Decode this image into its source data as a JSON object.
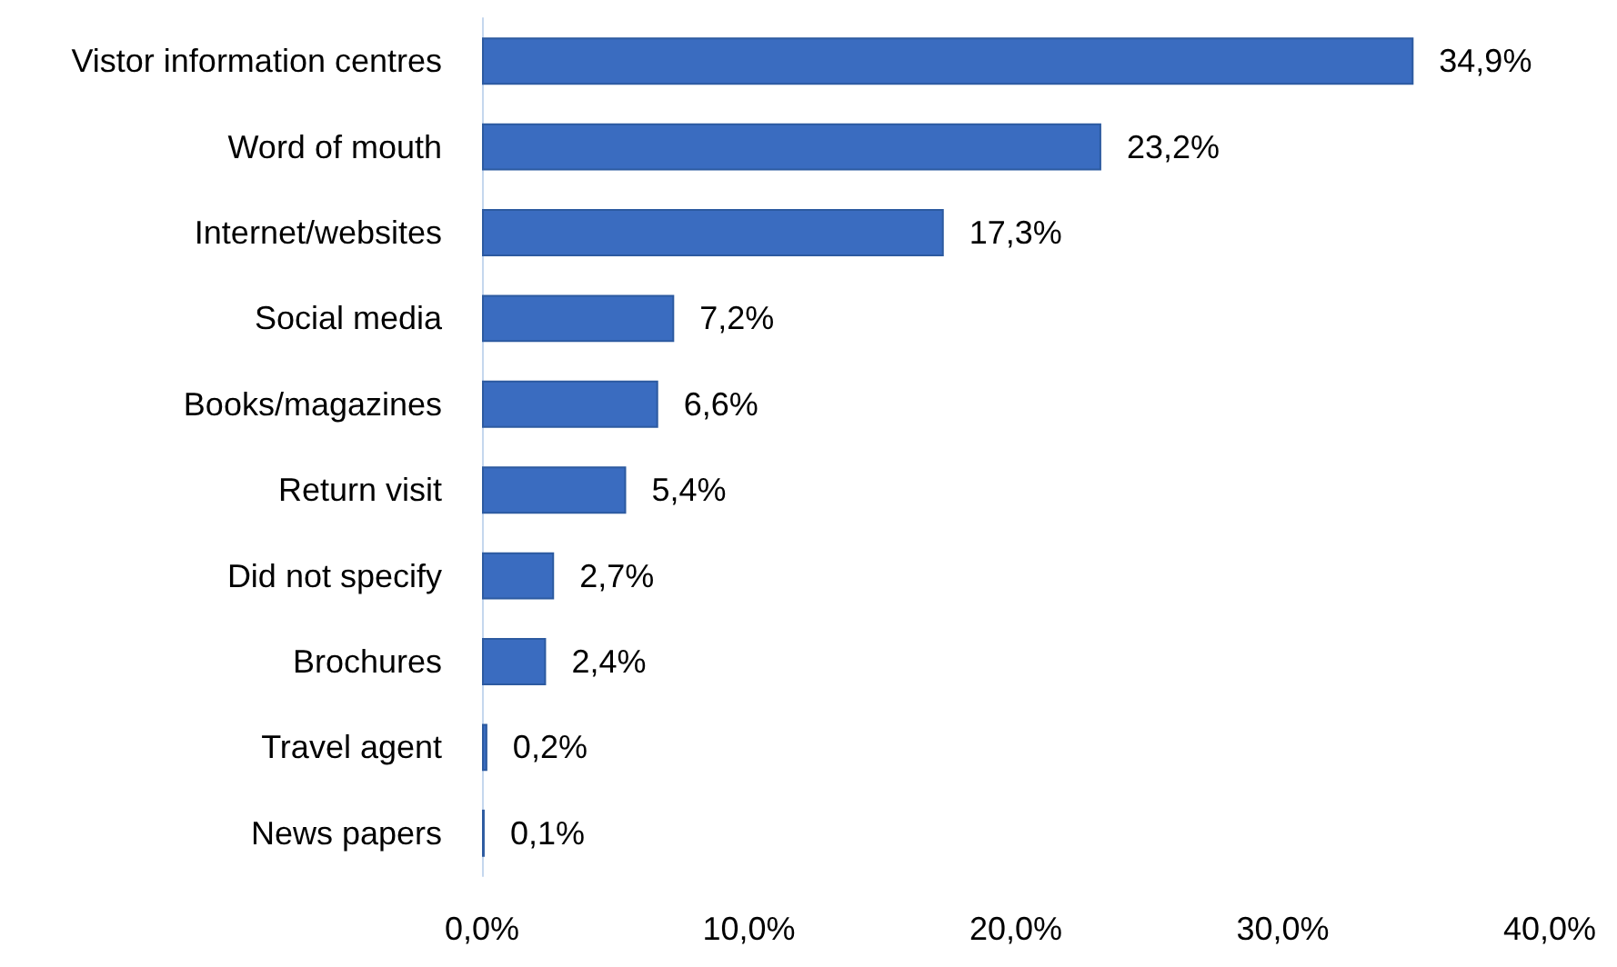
{
  "chart_data": {
    "type": "bar",
    "orientation": "horizontal",
    "categories": [
      "Vistor information centres",
      "Word of mouth",
      "Internet/websites",
      "Social media",
      "Books/magazines",
      "Return visit",
      "Did not specify",
      "Brochures",
      "Travel agent",
      "News papers"
    ],
    "values": [
      34.9,
      23.2,
      17.3,
      7.2,
      6.6,
      5.4,
      2.7,
      2.4,
      0.2,
      0.1
    ],
    "value_labels": [
      "34,9%",
      "23,2%",
      "17,3%",
      "7,2%",
      "6,6%",
      "5,4%",
      "2,7%",
      "2,4%",
      "0,2%",
      "0,1%"
    ],
    "color": "#3a6cc0",
    "xlim": [
      0,
      40
    ],
    "xticks": [
      {
        "value": 0,
        "label": "0,0%"
      },
      {
        "value": 10,
        "label": "10,0%"
      },
      {
        "value": 20,
        "label": "20,0%"
      },
      {
        "value": 30,
        "label": "30,0%"
      },
      {
        "value": 40,
        "label": "40,0%"
      }
    ],
    "grid": false
  }
}
